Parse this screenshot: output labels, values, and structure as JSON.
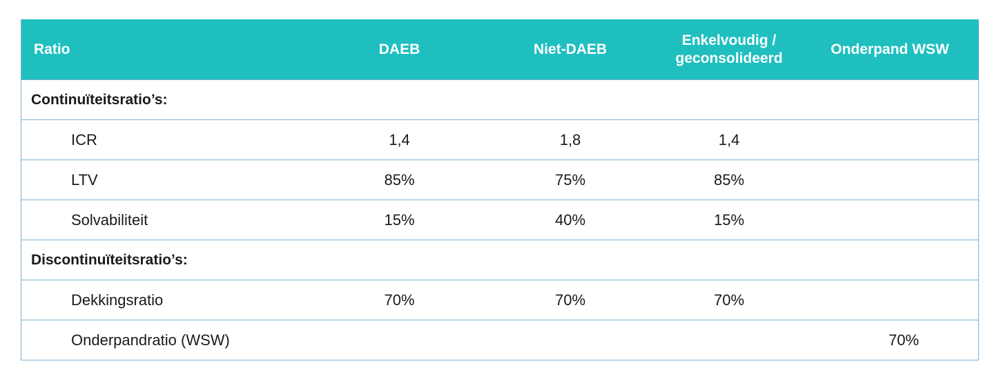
{
  "table": {
    "headers": {
      "ratio": "Ratio",
      "daeb": "DAEB",
      "niet_daeb": "Niet-DAEB",
      "enkelvoudig": "Enkelvoudig /\ngeconsolideerd",
      "onderpand": "Onderpand WSW"
    },
    "section1": "Continuïteitsratio’s:",
    "rows1": [
      {
        "label": "ICR",
        "daeb": "1,4",
        "niet_daeb": "1,8",
        "enkelvoudig": "1,4",
        "onderpand": ""
      },
      {
        "label": "LTV",
        "daeb": "85%",
        "niet_daeb": "75%",
        "enkelvoudig": "85%",
        "onderpand": ""
      },
      {
        "label": "Solvabiliteit",
        "daeb": "15%",
        "niet_daeb": "40%",
        "enkelvoudig": "15%",
        "onderpand": ""
      }
    ],
    "section2": "Discontinuïteitsratio’s:",
    "rows2": [
      {
        "label": "Dekkingsratio",
        "daeb": "70%",
        "niet_daeb": "70%",
        "enkelvoudig": "70%",
        "onderpand": ""
      },
      {
        "label": "Onderpandratio (WSW)",
        "daeb": "",
        "niet_daeb": "",
        "enkelvoudig": "",
        "onderpand": "70%"
      }
    ]
  },
  "colors": {
    "header_bg": "#1fbfbf",
    "border": "#7fb1cc"
  }
}
